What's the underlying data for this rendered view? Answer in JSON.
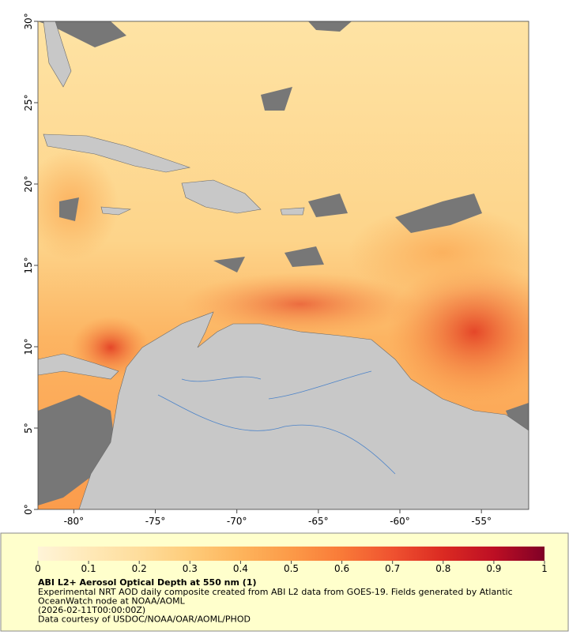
{
  "map": {
    "xlim": [
      -82.2,
      -52.1
    ],
    "ylim": [
      0,
      30
    ],
    "xticks": [
      {
        "value": -80,
        "label": "-80°"
      },
      {
        "value": -75,
        "label": "-75°"
      },
      {
        "value": -70,
        "label": "-70°"
      },
      {
        "value": -65,
        "label": "-65°"
      },
      {
        "value": -60,
        "label": "-60°"
      },
      {
        "value": -55,
        "label": "-55°"
      }
    ],
    "yticks": [
      {
        "value": 0,
        "label": "0°"
      },
      {
        "value": 5,
        "label": "5°"
      },
      {
        "value": 10,
        "label": "10°"
      },
      {
        "value": 15,
        "label": "15°"
      },
      {
        "value": 20,
        "label": "20°"
      },
      {
        "value": 25,
        "label": "25°"
      },
      {
        "value": 30,
        "label": "30°"
      }
    ],
    "colorbar": {
      "lim": [
        0,
        1
      ],
      "ticks": [
        0,
        0.1,
        0.2,
        0.3,
        0.4,
        0.5,
        0.6,
        0.7,
        0.8,
        0.9,
        1
      ],
      "colors": [
        "#fff4d8",
        "#ffe9b8",
        "#fedd9c",
        "#fecc7a",
        "#fdb45c",
        "#fc9a48",
        "#f97a38",
        "#ef5230",
        "#db2a22",
        "#bd0f24",
        "#800026"
      ]
    },
    "caption": {
      "title": "ABI L2+ Aerosol Optical Depth at 550 nm (1)",
      "lines": [
        "Experimental NRT AOD daily composite created from ABI L2 data from GOES-19. Fields generated by Atlantic",
        "OceanWatch node at NOAA/AOML",
        "(2026-02-11T00:00:00Z)",
        "Data courtesy of USDOC/NOAA/OAR/AOML/PHOD"
      ]
    }
  }
}
